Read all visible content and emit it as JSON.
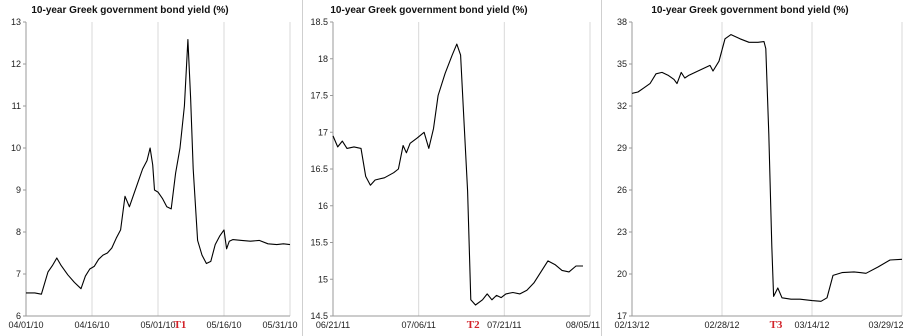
{
  "colors": {
    "line": "#000000",
    "grid": "#d9d9d9",
    "marker": "#d2232a"
  },
  "chart_data": [
    {
      "type": "line",
      "title": "10-year Greek government bond yield (%)",
      "xlabel": "",
      "ylabel": "",
      "grid": "vertical",
      "x_tick_labels": [
        "04/01/10",
        "04/16/10",
        "05/01/10",
        "05/16/10",
        "05/31/10"
      ],
      "y_ticks": [
        "6",
        "7",
        "8",
        "9",
        "10",
        "11",
        "12",
        "13"
      ],
      "ylim": [
        6,
        13
      ],
      "xlim": [
        0,
        60
      ],
      "marker": {
        "label": "T1",
        "x": 35
      },
      "series": [
        {
          "values": [
            [
              0,
              6.55
            ],
            [
              2,
              6.55
            ],
            [
              3.5,
              6.52
            ],
            [
              5,
              7.05
            ],
            [
              6,
              7.2
            ],
            [
              7,
              7.38
            ],
            [
              8,
              7.2
            ],
            [
              9.5,
              6.98
            ],
            [
              11,
              6.8
            ],
            [
              12.5,
              6.65
            ],
            [
              13.5,
              6.95
            ],
            [
              14.5,
              7.12
            ],
            [
              15.5,
              7.18
            ],
            [
              16.5,
              7.35
            ],
            [
              17.5,
              7.45
            ],
            [
              18.5,
              7.5
            ],
            [
              19.5,
              7.62
            ],
            [
              20.5,
              7.85
            ],
            [
              21.5,
              8.05
            ],
            [
              22.5,
              8.85
            ],
            [
              23.5,
              8.6
            ],
            [
              24.5,
              8.9
            ],
            [
              25.5,
              9.2
            ],
            [
              26.5,
              9.5
            ],
            [
              27.5,
              9.7
            ],
            [
              28.2,
              10.0
            ],
            [
              28.8,
              9.6
            ],
            [
              29.2,
              9.0
            ],
            [
              30,
              8.95
            ],
            [
              31,
              8.8
            ],
            [
              32,
              8.6
            ],
            [
              33,
              8.55
            ],
            [
              34,
              9.4
            ],
            [
              35,
              10.0
            ],
            [
              36,
              11.0
            ],
            [
              36.8,
              12.58
            ],
            [
              37.4,
              11.2
            ],
            [
              38,
              9.5
            ],
            [
              39,
              7.8
            ],
            [
              40,
              7.45
            ],
            [
              41,
              7.25
            ],
            [
              42,
              7.3
            ],
            [
              43,
              7.7
            ],
            [
              44,
              7.9
            ],
            [
              45,
              8.05
            ],
            [
              45.6,
              7.6
            ],
            [
              46.2,
              7.78
            ],
            [
              47,
              7.82
            ],
            [
              49,
              7.8
            ],
            [
              51,
              7.78
            ],
            [
              53,
              7.8
            ],
            [
              55,
              7.72
            ],
            [
              57,
              7.7
            ],
            [
              58.5,
              7.72
            ],
            [
              60,
              7.7
            ]
          ]
        }
      ]
    },
    {
      "type": "line",
      "title": "10-year Greek government bond yield (%)",
      "xlabel": "",
      "ylabel": "",
      "grid": "vertical",
      "x_tick_labels": [
        "06/21/11",
        "07/06/11",
        "07/21/11",
        "08/05/11"
      ],
      "y_ticks": [
        "14.5",
        "15",
        "15.5",
        "16",
        "16.5",
        "17",
        "17.5",
        "18",
        "18.5"
      ],
      "ylim": [
        14.5,
        18.5
      ],
      "xlim": [
        0,
        55
      ],
      "marker": {
        "label": "T2",
        "x": 30
      },
      "series": [
        {
          "values": [
            [
              0,
              16.95
            ],
            [
              1,
              16.8
            ],
            [
              2,
              16.88
            ],
            [
              3,
              16.78
            ],
            [
              4.5,
              16.8
            ],
            [
              6,
              16.78
            ],
            [
              7,
              16.4
            ],
            [
              8,
              16.28
            ],
            [
              9,
              16.35
            ],
            [
              11,
              16.38
            ],
            [
              13,
              16.45
            ],
            [
              14,
              16.5
            ],
            [
              15,
              16.82
            ],
            [
              15.7,
              16.72
            ],
            [
              16.5,
              16.85
            ],
            [
              18,
              16.92
            ],
            [
              19.5,
              17.0
            ],
            [
              20.5,
              16.78
            ],
            [
              21.5,
              17.05
            ],
            [
              22.5,
              17.5
            ],
            [
              24,
              17.8
            ],
            [
              25.5,
              18.05
            ],
            [
              26.5,
              18.2
            ],
            [
              27.3,
              18.05
            ],
            [
              28,
              17.2
            ],
            [
              28.8,
              16.2
            ],
            [
              29.5,
              14.72
            ],
            [
              30.5,
              14.65
            ],
            [
              32,
              14.72
            ],
            [
              33,
              14.8
            ],
            [
              34,
              14.72
            ],
            [
              35,
              14.78
            ],
            [
              36,
              14.75
            ],
            [
              37,
              14.8
            ],
            [
              38.5,
              14.82
            ],
            [
              40,
              14.8
            ],
            [
              41.5,
              14.85
            ],
            [
              43,
              14.95
            ],
            [
              44.5,
              15.1
            ],
            [
              46,
              15.25
            ],
            [
              47.5,
              15.2
            ],
            [
              49,
              15.12
            ],
            [
              50.5,
              15.1
            ],
            [
              52,
              15.18
            ],
            [
              53.5,
              15.18
            ]
          ]
        }
      ]
    },
    {
      "type": "line",
      "title": "10-year Greek government bond yield (%)",
      "xlabel": "",
      "ylabel": "",
      "grid": "vertical",
      "x_tick_labels": [
        "02/13/12",
        "02/28/12",
        "03/14/12",
        "03/29/12"
      ],
      "y_ticks": [
        "17",
        "20",
        "23",
        "26",
        "29",
        "32",
        "35",
        "38"
      ],
      "ylim": [
        17,
        38
      ],
      "xlim": [
        0,
        45
      ],
      "marker": {
        "label": "T3",
        "x": 24
      },
      "series": [
        {
          "values": [
            [
              0,
              32.9
            ],
            [
              1,
              33.0
            ],
            [
              2,
              33.3
            ],
            [
              3,
              33.6
            ],
            [
              4,
              34.3
            ],
            [
              5,
              34.4
            ],
            [
              6,
              34.2
            ],
            [
              7,
              33.9
            ],
            [
              7.5,
              33.6
            ],
            [
              8.2,
              34.4
            ],
            [
              8.8,
              34.0
            ],
            [
              9.5,
              34.2
            ],
            [
              11,
              34.5
            ],
            [
              13,
              34.9
            ],
            [
              13.5,
              34.5
            ],
            [
              14.5,
              35.2
            ],
            [
              15.5,
              36.8
            ],
            [
              16.5,
              37.1
            ],
            [
              18,
              36.8
            ],
            [
              19.5,
              36.55
            ],
            [
              21,
              36.55
            ],
            [
              22,
              36.6
            ],
            [
              22.3,
              36.1
            ],
            [
              22.8,
              30.0
            ],
            [
              23.3,
              22.0
            ],
            [
              23.6,
              18.4
            ],
            [
              24.3,
              19.0
            ],
            [
              25,
              18.3
            ],
            [
              26.5,
              18.2
            ],
            [
              28,
              18.2
            ],
            [
              30,
              18.1
            ],
            [
              31.5,
              18.05
            ],
            [
              32.5,
              18.3
            ],
            [
              33.5,
              19.9
            ],
            [
              35,
              20.1
            ],
            [
              37,
              20.15
            ],
            [
              38,
              20.1
            ],
            [
              39,
              20.05
            ],
            [
              41,
              20.5
            ],
            [
              43,
              21.0
            ],
            [
              45,
              21.05
            ]
          ]
        }
      ]
    }
  ]
}
